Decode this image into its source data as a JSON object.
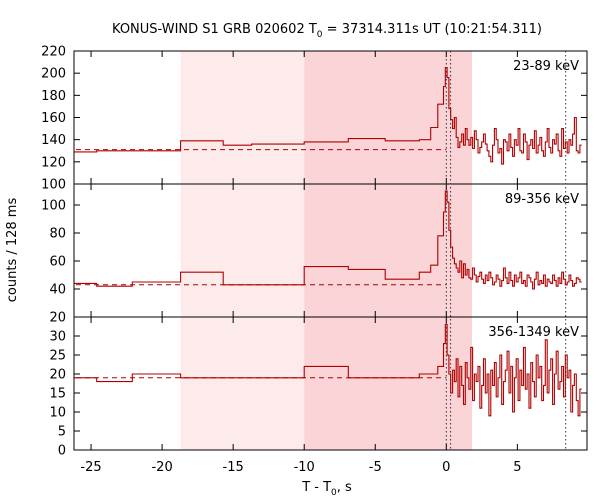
{
  "colors": {
    "series": "#b00000",
    "shade_light": "#fdeaea",
    "shade_dark": "#fad4d6",
    "axis": "#000000"
  },
  "chart_data": {
    "type": "line",
    "title_main": "KONUS-WIND S1 GRB 020602 T",
    "title_sub": "0",
    "title_rest": " = 37314.311s UT (10:21:54.311)",
    "xlabel_main": "T - T",
    "xlabel_sub": "0",
    "xlabel_rest": ", s",
    "ylabel": "counts / 128 ms",
    "xlim": [
      -26.2,
      9.9
    ],
    "x_ticks": [
      -25,
      -20,
      -15,
      -10,
      -5,
      0,
      5
    ],
    "shaded_intervals": [
      {
        "x": [
          -18.7,
          -10.0
        ],
        "shade": "light"
      },
      {
        "x": [
          -10.0,
          1.8
        ],
        "shade": "dark"
      }
    ],
    "vertical_markers": [
      0.0,
      0.3,
      8.4
    ],
    "panels": [
      {
        "label": "23-89 keV",
        "ylim": [
          100,
          220
        ],
        "y_ticks": [
          100,
          120,
          140,
          160,
          180,
          200,
          220
        ],
        "background": 131,
        "coarse_steps": [
          [
            -26.2,
            129
          ],
          [
            -24.6,
            130
          ],
          [
            -22.1,
            130
          ],
          [
            -18.7,
            139
          ],
          [
            -15.7,
            135
          ],
          [
            -13.7,
            136
          ],
          [
            -10.0,
            138
          ],
          [
            -6.9,
            141
          ],
          [
            -4.3,
            139
          ],
          [
            -1.9,
            140
          ],
          [
            -1.1,
            151
          ],
          [
            -0.6,
            172
          ]
        ],
        "fine_start": -0.2,
        "fine_dt": 0.128,
        "fine_values": [
          188,
          205,
          196,
          168,
          158,
          150,
          160,
          142,
          133,
          138,
          145,
          135,
          150,
          140,
          135,
          142,
          132,
          148,
          140,
          128,
          133,
          138,
          145,
          136,
          130,
          125,
          120,
          135,
          150,
          140,
          128,
          132,
          118,
          140,
          138,
          130,
          145,
          133,
          125,
          140,
          135,
          150,
          130,
          128,
          145,
          138,
          122,
          135,
          140,
          132,
          148,
          128,
          135,
          142,
          130,
          125,
          138,
          150,
          133,
          128,
          140,
          136,
          145,
          130,
          125,
          150,
          132,
          138,
          128,
          140,
          135,
          145,
          160,
          130,
          128,
          135
        ]
      },
      {
        "label": "89-356 keV",
        "ylim": [
          20,
          115
        ],
        "y_ticks": [
          20,
          40,
          60,
          80,
          100
        ],
        "background": 43,
        "coarse_steps": [
          [
            -26.2,
            44
          ],
          [
            -24.6,
            42
          ],
          [
            -22.1,
            45
          ],
          [
            -18.7,
            52
          ],
          [
            -15.7,
            43
          ],
          [
            -13.7,
            43
          ],
          [
            -10.0,
            56
          ],
          [
            -6.9,
            54
          ],
          [
            -4.3,
            47
          ],
          [
            -1.9,
            52
          ],
          [
            -1.1,
            57
          ],
          [
            -0.6,
            78
          ]
        ],
        "fine_start": -0.2,
        "fine_dt": 0.128,
        "fine_values": [
          95,
          110,
          102,
          82,
          70,
          62,
          58,
          55,
          52,
          60,
          48,
          58,
          50,
          54,
          48,
          47,
          55,
          50,
          45,
          49,
          52,
          47,
          44,
          50,
          46,
          52,
          48,
          43,
          45,
          50,
          47,
          42,
          46,
          55,
          48,
          44,
          52,
          46,
          42,
          50,
          45,
          48,
          52,
          44,
          46,
          42,
          50,
          48,
          45,
          40,
          47,
          52,
          43,
          46,
          44,
          50,
          42,
          47,
          45,
          44,
          50,
          46,
          42,
          48,
          44,
          52,
          47,
          43,
          45,
          50,
          46,
          42,
          44,
          48,
          47,
          45
        ]
      },
      {
        "label": "356-1349 keV",
        "ylim": [
          0,
          35
        ],
        "y_ticks": [
          0,
          5,
          10,
          15,
          20,
          25,
          30
        ],
        "background": 19,
        "coarse_steps": [
          [
            -26.2,
            19
          ],
          [
            -24.6,
            18
          ],
          [
            -22.1,
            20
          ],
          [
            -18.7,
            19
          ],
          [
            -15.7,
            19
          ],
          [
            -13.7,
            19
          ],
          [
            -10.0,
            22
          ],
          [
            -6.9,
            19
          ],
          [
            -4.3,
            19
          ],
          [
            -1.9,
            20
          ],
          [
            -1.1,
            20
          ],
          [
            -0.6,
            22
          ]
        ],
        "fine_start": -0.2,
        "fine_dt": 0.128,
        "fine_values": [
          28,
          33,
          25,
          20,
          15,
          21,
          18,
          24,
          14,
          22,
          17,
          12,
          23,
          19,
          16,
          27,
          13,
          20,
          18,
          22,
          11,
          17,
          24,
          15,
          20,
          9,
          21,
          17,
          23,
          14,
          19,
          25,
          12,
          18,
          21,
          26,
          15,
          22,
          10,
          19,
          24,
          13,
          21,
          17,
          27,
          16,
          20,
          11,
          23,
          18,
          14,
          25,
          19,
          22,
          13,
          17,
          29,
          15,
          21,
          24,
          12,
          20,
          26,
          16,
          18,
          22,
          14,
          25,
          19,
          21,
          10,
          17,
          20,
          13,
          9,
          16
        ]
      }
    ]
  }
}
